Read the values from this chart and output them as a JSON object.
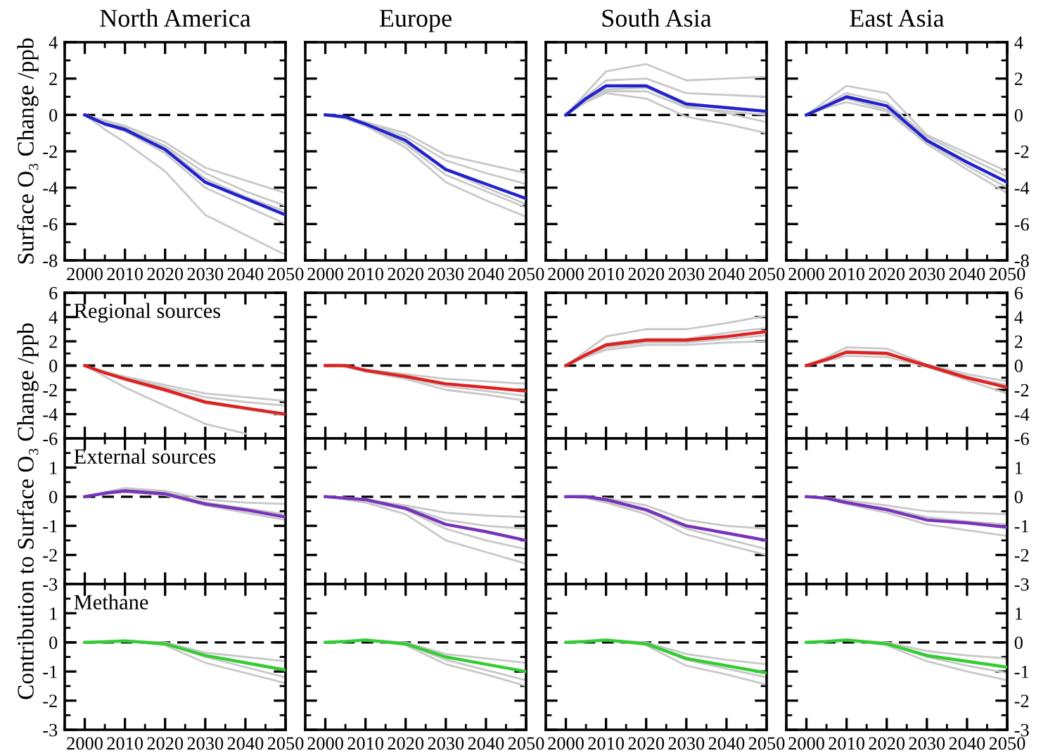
{
  "chart_data": [
    {
      "type": "line",
      "title": "North America",
      "ylabel": "Surface O₃ Change /ppb",
      "x": [
        2000,
        2005,
        2010,
        2020,
        2030,
        2040,
        2050
      ],
      "xlim": [
        1995,
        2050
      ],
      "xticks": [
        2000,
        2010,
        2020,
        2030,
        2040,
        2050
      ],
      "ylim": [
        -8,
        4
      ],
      "yticks": [
        -8,
        -6,
        -4,
        -2,
        0,
        2,
        4
      ],
      "ref_lines": [
        {
          "axis": "y",
          "value": 0,
          "line_style": "dashed",
          "color": "#000000"
        }
      ],
      "grid": false,
      "legend": false,
      "series": [
        {
          "color": "#c8c8c8",
          "values": [
            0,
            -0.8,
            -1.5,
            -3.1,
            -5.5,
            -6.6,
            -7.7
          ]
        },
        {
          "color": "#c8c8c8",
          "values": [
            0,
            -0.3,
            -0.6,
            -1.5,
            -2.9,
            -3.6,
            -4.3
          ]
        },
        {
          "color": "#c8c8c8",
          "values": [
            0,
            -0.4,
            -0.7,
            -1.7,
            -3.2,
            -4.2,
            -5.0
          ]
        },
        {
          "color": "#c8c8c8",
          "values": [
            0,
            -0.5,
            -0.9,
            -2.1,
            -4.0,
            -5.0,
            -6.0
          ]
        },
        {
          "color": "#c8c8c8",
          "values": [
            0,
            -0.4,
            -0.8,
            -1.8,
            -3.5,
            -4.5,
            -5.3
          ]
        },
        {
          "color": "#2222cc",
          "values": [
            0,
            -0.5,
            -0.8,
            -1.9,
            -3.7,
            -4.6,
            -5.5
          ]
        }
      ]
    },
    {
      "type": "line",
      "title": "Europe",
      "x": [
        2000,
        2005,
        2010,
        2020,
        2030,
        2040,
        2050
      ],
      "xlim": [
        1995,
        2050
      ],
      "xticks": [
        2000,
        2010,
        2020,
        2030,
        2040,
        2050
      ],
      "ylim": [
        -8,
        4
      ],
      "yticks": [
        -8,
        -6,
        -4,
        -2,
        0,
        2,
        4
      ],
      "tick_labels": "x",
      "ref_lines": [
        {
          "axis": "y",
          "value": 0,
          "line_style": "dashed",
          "color": "#000000"
        }
      ],
      "grid": false,
      "legend": false,
      "series": [
        {
          "color": "#c8c8c8",
          "values": [
            0,
            -0.1,
            -0.4,
            -1.0,
            -2.2,
            -2.7,
            -3.2
          ]
        },
        {
          "color": "#c8c8c8",
          "values": [
            0,
            -0.1,
            -0.4,
            -1.2,
            -2.5,
            -3.2,
            -3.8
          ]
        },
        {
          "color": "#c8c8c8",
          "values": [
            0,
            -0.2,
            -0.6,
            -1.6,
            -3.3,
            -4.2,
            -5.1
          ]
        },
        {
          "color": "#c8c8c8",
          "values": [
            0,
            -0.2,
            -0.6,
            -1.8,
            -3.7,
            -4.7,
            -5.6
          ]
        },
        {
          "color": "#c8c8c8",
          "values": [
            0,
            -0.1,
            -0.5,
            -1.5,
            -3.0,
            -4.0,
            -4.9
          ]
        },
        {
          "color": "#2222cc",
          "values": [
            0,
            -0.1,
            -0.5,
            -1.4,
            -3.0,
            -3.8,
            -4.6
          ]
        }
      ]
    },
    {
      "type": "line",
      "title": "South Asia",
      "x": [
        2000,
        2005,
        2010,
        2020,
        2030,
        2040,
        2050
      ],
      "xlim": [
        1995,
        2050
      ],
      "xticks": [
        2000,
        2010,
        2020,
        2030,
        2040,
        2050
      ],
      "ylim": [
        -8,
        4
      ],
      "yticks": [
        -8,
        -6,
        -4,
        -2,
        0,
        2,
        4
      ],
      "tick_labels": "x",
      "ref_lines": [
        {
          "axis": "y",
          "value": 0,
          "line_style": "dashed",
          "color": "#000000"
        }
      ],
      "grid": false,
      "legend": false,
      "series": [
        {
          "color": "#c8c8c8",
          "values": [
            0,
            1.2,
            2.4,
            2.8,
            1.9,
            2.0,
            2.1
          ]
        },
        {
          "color": "#c8c8c8",
          "values": [
            0,
            1.0,
            1.9,
            2.0,
            1.2,
            1.1,
            1.0
          ]
        },
        {
          "color": "#c8c8c8",
          "values": [
            0,
            0.8,
            1.3,
            1.3,
            0.4,
            0.2,
            0.0
          ]
        },
        {
          "color": "#c8c8c8",
          "values": [
            0,
            0.7,
            1.2,
            0.9,
            -0.1,
            -0.5,
            -1.0
          ]
        },
        {
          "color": "#c8c8c8",
          "values": [
            0,
            0.8,
            1.4,
            1.5,
            0.5,
            0.1,
            -0.4
          ]
        },
        {
          "color": "#2222cc",
          "values": [
            0,
            0.9,
            1.6,
            1.6,
            0.6,
            0.4,
            0.2
          ]
        }
      ]
    },
    {
      "type": "line",
      "title": "East Asia",
      "x": [
        2000,
        2005,
        2010,
        2020,
        2030,
        2040,
        2050
      ],
      "xlim": [
        1995,
        2050
      ],
      "xticks": [
        2000,
        2010,
        2020,
        2030,
        2040,
        2050
      ],
      "ylim": [
        -8,
        4
      ],
      "yticks": [
        -8,
        -6,
        -4,
        -2,
        0,
        2,
        4
      ],
      "ref_lines": [
        {
          "axis": "y",
          "value": 0,
          "line_style": "dashed",
          "color": "#000000"
        }
      ],
      "grid": false,
      "legend": false,
      "series": [
        {
          "color": "#c8c8c8",
          "values": [
            0,
            0.8,
            1.6,
            1.2,
            -1.1,
            -2.1,
            -3.1
          ]
        },
        {
          "color": "#c8c8c8",
          "values": [
            0,
            0.6,
            1.2,
            0.7,
            -1.2,
            -2.3,
            -3.4
          ]
        },
        {
          "color": "#c8c8c8",
          "values": [
            0,
            0.4,
            0.7,
            0.2,
            -1.6,
            -3.0,
            -4.3
          ]
        },
        {
          "color": "#c8c8c8",
          "values": [
            0,
            0.5,
            0.9,
            0.3,
            -1.5,
            -2.8,
            -4.0
          ]
        },
        {
          "color": "#2222cc",
          "values": [
            0,
            0.5,
            1.0,
            0.5,
            -1.4,
            -2.6,
            -3.7
          ]
        }
      ]
    },
    {
      "type": "line",
      "annotations": [
        "Regional sources"
      ],
      "x": [
        2000,
        2005,
        2010,
        2020,
        2030,
        2040,
        2050
      ],
      "xlim": [
        1995,
        2050
      ],
      "xticks": [
        2000,
        2010,
        2020,
        2030,
        2040,
        2050
      ],
      "ylim": [
        -6,
        6
      ],
      "yticks": [
        -6,
        -4,
        -2,
        0,
        2,
        4,
        6
      ],
      "tick_labels": "y",
      "ref_lines": [
        {
          "axis": "y",
          "value": 0,
          "line_style": "dashed",
          "color": "#000000"
        }
      ],
      "grid": false,
      "legend": false,
      "series": [
        {
          "color": "#c8c8c8",
          "values": [
            0,
            -0.9,
            -1.8,
            -3.3,
            -4.8,
            -5.6,
            null
          ]
        },
        {
          "color": "#c8c8c8",
          "values": [
            0,
            -0.5,
            -0.9,
            -1.6,
            -2.3,
            -2.6,
            -2.9
          ]
        },
        {
          "color": "#c8c8c8",
          "values": [
            0,
            -0.5,
            -1.0,
            -1.8,
            -2.6,
            -3.0,
            -3.3
          ]
        },
        {
          "color": "#c8c8c8",
          "values": [
            0,
            -0.6,
            -1.2,
            -2.1,
            -3.1,
            -3.6,
            -4.1
          ]
        },
        {
          "color": "#dd2222",
          "values": [
            0,
            -0.6,
            -1.1,
            -2.0,
            -3.0,
            -3.5,
            -4.0
          ]
        }
      ]
    },
    {
      "type": "line",
      "x": [
        2000,
        2005,
        2010,
        2020,
        2030,
        2040,
        2050
      ],
      "xlim": [
        1995,
        2050
      ],
      "xticks": [
        2000,
        2010,
        2020,
        2030,
        2040,
        2050
      ],
      "ylim": [
        -6,
        6
      ],
      "yticks": [
        -6,
        -4,
        -2,
        0,
        2,
        4,
        6
      ],
      "tick_labels": false,
      "ref_lines": [
        {
          "axis": "y",
          "value": 0,
          "line_style": "dashed",
          "color": "#000000"
        }
      ],
      "grid": false,
      "legend": false,
      "series": [
        {
          "color": "#c8c8c8",
          "values": [
            0,
            0,
            -0.3,
            -0.7,
            -1.1,
            -1.3,
            -1.5
          ]
        },
        {
          "color": "#c8c8c8",
          "values": [
            0,
            -0.1,
            -0.5,
            -1.1,
            -2.0,
            -2.4,
            -2.9
          ]
        },
        {
          "color": "#c8c8c8",
          "values": [
            0,
            -0.1,
            -0.4,
            -1.0,
            -1.7,
            -2.1,
            -2.5
          ]
        },
        {
          "color": "#dd2222",
          "values": [
            0,
            0,
            -0.4,
            -0.9,
            -1.5,
            -1.8,
            -2.1
          ]
        }
      ]
    },
    {
      "type": "line",
      "x": [
        2000,
        2005,
        2010,
        2020,
        2030,
        2040,
        2050
      ],
      "xlim": [
        1995,
        2050
      ],
      "xticks": [
        2000,
        2010,
        2020,
        2030,
        2040,
        2050
      ],
      "ylim": [
        -6,
        6
      ],
      "yticks": [
        -6,
        -4,
        -2,
        0,
        2,
        4,
        6
      ],
      "tick_labels": false,
      "ref_lines": [
        {
          "axis": "y",
          "value": 0,
          "line_style": "dashed",
          "color": "#000000"
        }
      ],
      "grid": false,
      "legend": false,
      "series": [
        {
          "color": "#c8c8c8",
          "values": [
            0,
            1.2,
            2.4,
            3.0,
            3.0,
            3.5,
            4.1
          ]
        },
        {
          "color": "#c8c8c8",
          "values": [
            0,
            0.7,
            1.3,
            1.7,
            1.7,
            1.9,
            2.0
          ]
        },
        {
          "color": "#c8c8c8",
          "values": [
            0,
            0.9,
            1.8,
            2.2,
            2.2,
            2.7,
            3.1
          ]
        },
        {
          "color": "#c8c8c8",
          "values": [
            0,
            0.8,
            1.5,
            1.9,
            1.9,
            2.2,
            2.5
          ]
        },
        {
          "color": "#dd2222",
          "values": [
            0,
            0.9,
            1.7,
            2.1,
            2.1,
            2.4,
            2.8
          ]
        }
      ]
    },
    {
      "type": "line",
      "x": [
        2000,
        2005,
        2010,
        2020,
        2030,
        2040,
        2050
      ],
      "xlim": [
        1995,
        2050
      ],
      "xticks": [
        2000,
        2010,
        2020,
        2030,
        2040,
        2050
      ],
      "ylim": [
        -6,
        6
      ],
      "yticks": [
        -6,
        -4,
        -2,
        0,
        2,
        4,
        6
      ],
      "tick_labels": "y",
      "ref_lines": [
        {
          "axis": "y",
          "value": 0,
          "line_style": "dashed",
          "color": "#000000"
        }
      ],
      "grid": false,
      "legend": false,
      "series": [
        {
          "color": "#c8c8c8",
          "values": [
            0,
            0.7,
            1.5,
            1.4,
            0.1,
            -0.7,
            -1.3
          ]
        },
        {
          "color": "#c8c8c8",
          "values": [
            0,
            0.4,
            0.8,
            0.7,
            -0.1,
            -1.2,
            -2.3
          ]
        },
        {
          "color": "#c8c8c8",
          "values": [
            0,
            0.6,
            1.2,
            1.1,
            0,
            -0.9,
            -1.6
          ]
        },
        {
          "color": "#dd2222",
          "values": [
            0,
            0.5,
            1.1,
            1.0,
            0,
            -1.0,
            -1.8
          ]
        }
      ]
    },
    {
      "type": "line",
      "annotations": [
        "External sources"
      ],
      "ylabel": "Contribution to Surface O₃ Change /ppb",
      "x": [
        2000,
        2005,
        2010,
        2020,
        2030,
        2040,
        2050
      ],
      "xlim": [
        1995,
        2050
      ],
      "xticks": [
        2000,
        2010,
        2020,
        2030,
        2040,
        2050
      ],
      "ylim": [
        -3,
        2
      ],
      "yticks": [
        -3,
        -2,
        -1,
        0,
        1
      ],
      "tick_labels": "y",
      "ref_lines": [
        {
          "axis": "y",
          "value": 0,
          "line_style": "dashed",
          "color": "#000000"
        }
      ],
      "grid": false,
      "legend": false,
      "series": [
        {
          "color": "#c8c8c8",
          "values": [
            0,
            0.15,
            0.3,
            0.2,
            -0.1,
            -0.2,
            -0.25
          ]
        },
        {
          "color": "#c8c8c8",
          "values": [
            0,
            0.1,
            0.15,
            0.05,
            -0.3,
            -0.55,
            -0.8
          ]
        },
        {
          "color": "#c8c8c8",
          "values": [
            0,
            0.12,
            0.25,
            0.15,
            -0.2,
            -0.4,
            -0.6
          ]
        },
        {
          "color": "#7733bb",
          "values": [
            0,
            0.12,
            0.2,
            0.1,
            -0.25,
            -0.45,
            -0.7
          ]
        }
      ]
    },
    {
      "type": "line",
      "x": [
        2000,
        2005,
        2010,
        2020,
        2030,
        2040,
        2050
      ],
      "xlim": [
        1995,
        2050
      ],
      "xticks": [
        2000,
        2010,
        2020,
        2030,
        2040,
        2050
      ],
      "ylim": [
        -3,
        2
      ],
      "yticks": [
        -3,
        -2,
        -1,
        0,
        1
      ],
      "tick_labels": false,
      "ref_lines": [
        {
          "axis": "y",
          "value": 0,
          "line_style": "dashed",
          "color": "#000000"
        }
      ],
      "grid": false,
      "legend": false,
      "series": [
        {
          "color": "#c8c8c8",
          "values": [
            0,
            -0.03,
            -0.1,
            -0.3,
            -0.55,
            -0.65,
            -0.7
          ]
        },
        {
          "color": "#c8c8c8",
          "values": [
            0,
            -0.1,
            -0.2,
            -0.6,
            -1.5,
            -1.9,
            -2.3
          ]
        },
        {
          "color": "#c8c8c8",
          "values": [
            0,
            -0.05,
            -0.15,
            -0.45,
            -1.1,
            -1.5,
            -1.8
          ]
        },
        {
          "color": "#c8c8c8",
          "values": [
            0,
            -0.04,
            -0.1,
            -0.35,
            -0.8,
            -1.0,
            -1.1
          ]
        },
        {
          "color": "#7733bb",
          "values": [
            0,
            -0.05,
            -0.1,
            -0.4,
            -0.95,
            -1.2,
            -1.5
          ]
        }
      ]
    },
    {
      "type": "line",
      "x": [
        2000,
        2005,
        2010,
        2020,
        2030,
        2040,
        2050
      ],
      "xlim": [
        1995,
        2050
      ],
      "xticks": [
        2000,
        2010,
        2020,
        2030,
        2040,
        2050
      ],
      "ylim": [
        -3,
        2
      ],
      "yticks": [
        -3,
        -2,
        -1,
        0,
        1
      ],
      "tick_labels": false,
      "ref_lines": [
        {
          "axis": "y",
          "value": 0,
          "line_style": "dashed",
          "color": "#000000"
        }
      ],
      "grid": false,
      "legend": false,
      "series": [
        {
          "color": "#c8c8c8",
          "values": [
            0,
            0,
            -0.05,
            -0.3,
            -0.8,
            -1.0,
            -1.1
          ]
        },
        {
          "color": "#c8c8c8",
          "values": [
            0,
            -0.05,
            -0.2,
            -0.6,
            -1.3,
            -1.65,
            -2.0
          ]
        },
        {
          "color": "#c8c8c8",
          "values": [
            0,
            -0.02,
            -0.15,
            -0.5,
            -1.1,
            -1.45,
            -1.8
          ]
        },
        {
          "color": "#7733bb",
          "values": [
            0,
            0,
            -0.1,
            -0.45,
            -1.0,
            -1.25,
            -1.5
          ]
        }
      ]
    },
    {
      "type": "line",
      "x": [
        2000,
        2005,
        2010,
        2020,
        2030,
        2040,
        2050
      ],
      "xlim": [
        1995,
        2050
      ],
      "xticks": [
        2000,
        2010,
        2020,
        2030,
        2040,
        2050
      ],
      "ylim": [
        -3,
        2
      ],
      "yticks": [
        -3,
        -2,
        -1,
        0,
        1
      ],
      "tick_labels": "y",
      "ref_lines": [
        {
          "axis": "y",
          "value": 0,
          "line_style": "dashed",
          "color": "#000000"
        }
      ],
      "grid": false,
      "legend": false,
      "series": [
        {
          "color": "#c8c8c8",
          "values": [
            0,
            -0.03,
            -0.12,
            -0.3,
            -0.5,
            -0.55,
            -0.6
          ]
        },
        {
          "color": "#c8c8c8",
          "values": [
            0,
            -0.08,
            -0.25,
            -0.55,
            -0.95,
            -1.15,
            -1.35
          ]
        },
        {
          "color": "#c8c8c8",
          "values": [
            0,
            -0.05,
            -0.18,
            -0.4,
            -0.7,
            -0.85,
            -0.95
          ]
        },
        {
          "color": "#7733bb",
          "values": [
            0,
            -0.05,
            -0.2,
            -0.45,
            -0.8,
            -0.9,
            -1.05
          ]
        }
      ]
    },
    {
      "type": "line",
      "annotations": [
        "Methane"
      ],
      "x": [
        2000,
        2005,
        2010,
        2020,
        2030,
        2040,
        2050
      ],
      "xlim": [
        1995,
        2050
      ],
      "xticks": [
        2000,
        2010,
        2020,
        2030,
        2040,
        2050
      ],
      "ylim": [
        -3,
        2
      ],
      "yticks": [
        -3,
        -2,
        -1,
        0,
        1
      ],
      "ref_lines": [
        {
          "axis": "y",
          "value": 0,
          "line_style": "dashed",
          "color": "#000000"
        }
      ],
      "grid": false,
      "legend": false,
      "series": [
        {
          "color": "#c8c8c8",
          "values": [
            0,
            0.02,
            0.05,
            -0.1,
            -0.7,
            -1.05,
            -1.4
          ]
        },
        {
          "color": "#c8c8c8",
          "values": [
            0,
            0.02,
            0.05,
            0,
            -0.35,
            -0.5,
            -0.65
          ]
        },
        {
          "color": "#c8c8c8",
          "values": [
            0,
            0.02,
            0.05,
            -0.05,
            -0.5,
            -0.85,
            -1.2
          ]
        },
        {
          "color": "#33cc33",
          "values": [
            0,
            0.02,
            0.05,
            -0.05,
            -0.45,
            -0.7,
            -0.95
          ]
        }
      ]
    },
    {
      "type": "line",
      "x": [
        2000,
        2005,
        2010,
        2020,
        2030,
        2040,
        2050
      ],
      "xlim": [
        1995,
        2050
      ],
      "xticks": [
        2000,
        2010,
        2020,
        2030,
        2040,
        2050
      ],
      "ylim": [
        -3,
        2
      ],
      "yticks": [
        -3,
        -2,
        -1,
        0,
        1
      ],
      "tick_labels": "x",
      "ref_lines": [
        {
          "axis": "y",
          "value": 0,
          "line_style": "dashed",
          "color": "#000000"
        }
      ],
      "grid": false,
      "legend": false,
      "series": [
        {
          "color": "#c8c8c8",
          "values": [
            0,
            0.03,
            0.08,
            -0.1,
            -0.75,
            -1.1,
            -1.5
          ]
        },
        {
          "color": "#c8c8c8",
          "values": [
            0,
            0.03,
            0.08,
            0,
            -0.4,
            -0.55,
            -0.7
          ]
        },
        {
          "color": "#c8c8c8",
          "values": [
            0,
            0.03,
            0.08,
            -0.05,
            -0.6,
            -0.95,
            -1.3
          ]
        },
        {
          "color": "#33cc33",
          "values": [
            0,
            0.03,
            0.08,
            -0.05,
            -0.5,
            -0.75,
            -1.0
          ]
        }
      ]
    },
    {
      "type": "line",
      "x": [
        2000,
        2005,
        2010,
        2020,
        2030,
        2040,
        2050
      ],
      "xlim": [
        1995,
        2050
      ],
      "xticks": [
        2000,
        2010,
        2020,
        2030,
        2040,
        2050
      ],
      "ylim": [
        -3,
        2
      ],
      "yticks": [
        -3,
        -2,
        -1,
        0,
        1
      ],
      "tick_labels": "x",
      "ref_lines": [
        {
          "axis": "y",
          "value": 0,
          "line_style": "dashed",
          "color": "#000000"
        }
      ],
      "grid": false,
      "legend": false,
      "series": [
        {
          "color": "#c8c8c8",
          "values": [
            0,
            0.03,
            0.08,
            -0.1,
            -0.8,
            -1.1,
            -1.45
          ]
        },
        {
          "color": "#c8c8c8",
          "values": [
            0,
            0.03,
            0.08,
            0,
            -0.4,
            -0.6,
            -0.75
          ]
        },
        {
          "color": "#c8c8c8",
          "values": [
            0,
            0.03,
            0.08,
            -0.05,
            -0.6,
            -0.9,
            -1.2
          ]
        },
        {
          "color": "#33cc33",
          "values": [
            0,
            0.03,
            0.08,
            -0.05,
            -0.55,
            -0.8,
            -1.05
          ]
        }
      ]
    },
    {
      "type": "line",
      "x": [
        2000,
        2005,
        2010,
        2020,
        2030,
        2040,
        2050
      ],
      "xlim": [
        1995,
        2050
      ],
      "xticks": [
        2000,
        2010,
        2020,
        2030,
        2040,
        2050
      ],
      "ylim": [
        -3,
        2
      ],
      "yticks": [
        -3,
        -2,
        -1,
        0,
        1
      ],
      "ref_lines": [
        {
          "axis": "y",
          "value": 0,
          "line_style": "dashed",
          "color": "#000000"
        }
      ],
      "grid": false,
      "legend": false,
      "series": [
        {
          "color": "#c8c8c8",
          "values": [
            0,
            0.03,
            0.08,
            -0.1,
            -0.65,
            -1.0,
            -1.3
          ]
        },
        {
          "color": "#c8c8c8",
          "values": [
            0,
            0.03,
            0.08,
            0,
            -0.3,
            -0.45,
            -0.55
          ]
        },
        {
          "color": "#c8c8c8",
          "values": [
            0,
            0.03,
            0.08,
            -0.05,
            -0.5,
            -0.8,
            -1.05
          ]
        },
        {
          "color": "#33cc33",
          "values": [
            0,
            0.03,
            0.08,
            -0.05,
            -0.45,
            -0.65,
            -0.85
          ]
        }
      ]
    }
  ]
}
